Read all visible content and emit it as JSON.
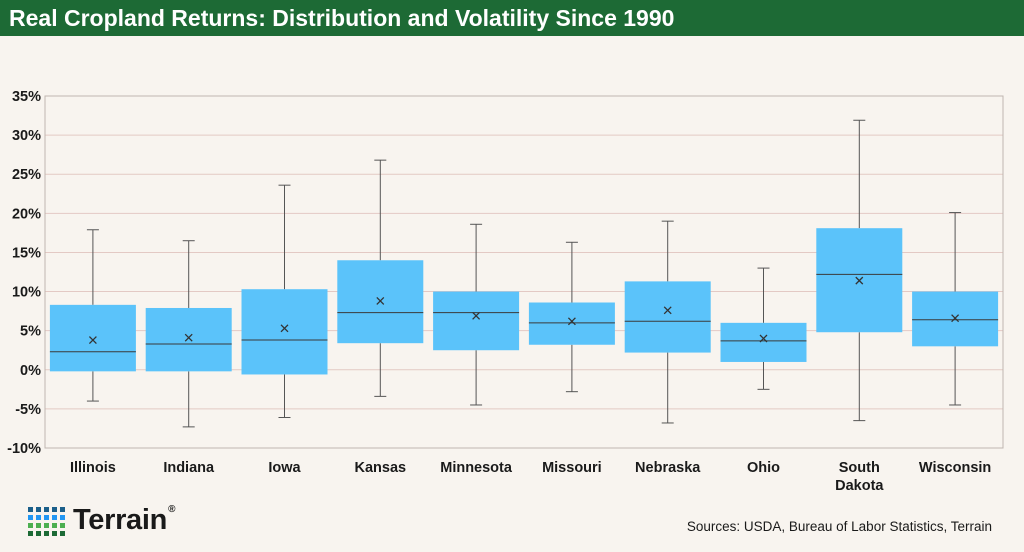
{
  "header": {
    "title": "Real Cropland Returns: Distribution and Volatility Since 1990"
  },
  "brand": {
    "logo_text": "Terrain",
    "trademark": "®"
  },
  "footer": {
    "sources": "Sources: USDA, Bureau of Labor Statistics, Terrain"
  },
  "colors": {
    "header_bg": "#1d6a35",
    "box_fill": "#5bc3fa",
    "background": "#f8f4ef",
    "gridline": "#e3c9c4",
    "logo_dots": [
      "#1b5f8a",
      "#1d6a35",
      "#4caf50",
      "#2196f3"
    ]
  },
  "chart_data": {
    "type": "box",
    "title": "Real Cropland Returns: Distribution and Volatility Since 1990",
    "xlabel": "",
    "ylabel": "",
    "ylim": [
      -10,
      35
    ],
    "yticks": [
      35,
      30,
      25,
      20,
      15,
      10,
      5,
      0,
      -5,
      -10
    ],
    "ytick_labels": [
      "35%",
      "30%",
      "25%",
      "20%",
      "15%",
      "10%",
      "5%",
      "0%",
      "-5%",
      "-10%"
    ],
    "grid": true,
    "legend": "none",
    "categories": [
      "Illinois",
      "Indiana",
      "Iowa",
      "Kansas",
      "Minnesota",
      "Missouri",
      "Nebraska",
      "Ohio",
      "South Dakota",
      "Wisconsin"
    ],
    "category_lines": [
      [
        "Illinois"
      ],
      [
        "Indiana"
      ],
      [
        "Iowa"
      ],
      [
        "Kansas"
      ],
      [
        "Minnesota"
      ],
      [
        "Missouri"
      ],
      [
        "Nebraska"
      ],
      [
        "Ohio"
      ],
      [
        "South",
        "Dakota"
      ],
      [
        "Wisconsin"
      ]
    ],
    "boxes": [
      {
        "min": -4.0,
        "q1": -0.2,
        "median": 2.3,
        "q3": 8.3,
        "max": 17.9,
        "mean": 3.8
      },
      {
        "min": -7.3,
        "q1": -0.2,
        "median": 3.3,
        "q3": 7.9,
        "max": 16.5,
        "mean": 4.1
      },
      {
        "min": -6.1,
        "q1": -0.6,
        "median": 3.8,
        "q3": 10.3,
        "max": 23.6,
        "mean": 5.3
      },
      {
        "min": -3.4,
        "q1": 3.4,
        "median": 7.3,
        "q3": 14.0,
        "max": 26.8,
        "mean": 8.8
      },
      {
        "min": -4.5,
        "q1": 2.5,
        "median": 7.3,
        "q3": 10.0,
        "max": 18.6,
        "mean": 6.9
      },
      {
        "min": -2.8,
        "q1": 3.2,
        "median": 6.0,
        "q3": 8.6,
        "max": 16.3,
        "mean": 6.2
      },
      {
        "min": -6.8,
        "q1": 2.2,
        "median": 6.2,
        "q3": 11.3,
        "max": 19.0,
        "mean": 7.6
      },
      {
        "min": -2.5,
        "q1": 1.0,
        "median": 3.7,
        "q3": 6.0,
        "max": 13.0,
        "mean": 4.0
      },
      {
        "min": -6.5,
        "q1": 4.8,
        "median": 12.2,
        "q3": 18.1,
        "max": 31.9,
        "mean": 11.4
      },
      {
        "min": -4.5,
        "q1": 3.0,
        "median": 6.4,
        "q3": 10.0,
        "max": 20.1,
        "mean": 6.6
      }
    ]
  }
}
